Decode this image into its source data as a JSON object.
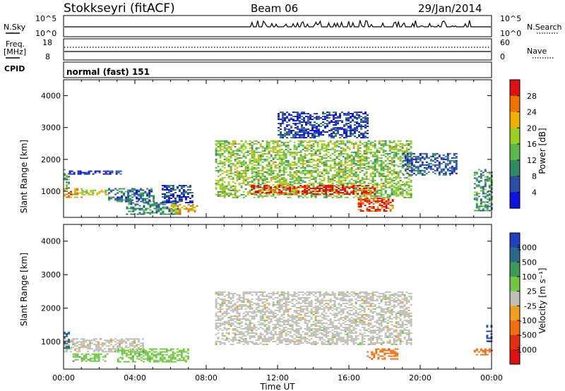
{
  "header": {
    "station": "Stokkseyri (fitACF)",
    "beam": "Beam 06",
    "date": "29/Jan/2014"
  },
  "noise_panel": {
    "left_label": "N.Sky",
    "right_label": "N.Search",
    "left_ticks": [
      "10^5",
      "10^0"
    ],
    "right_ticks": [
      "10^5",
      "10^0"
    ]
  },
  "freq_panel": {
    "left_label_1": "Freq.",
    "left_label_2": "[MHz]",
    "right_label": "Nave",
    "left_ticks": [
      "18",
      "8"
    ],
    "right_ticks": [
      "60",
      "0"
    ]
  },
  "cpid_panel": {
    "label": "CPID",
    "mode": "normal (fast) 151"
  },
  "chart_data": [
    {
      "type": "heatmap",
      "name": "power",
      "ylabel": "Slant Range [km]",
      "ylim": [
        180,
        4500
      ],
      "yticks": [
        "1000",
        "2000",
        "3000",
        "4000"
      ],
      "xlim": [
        0,
        24
      ],
      "colorbar": {
        "label": "Power [dB]",
        "ticks": [
          "4",
          "8",
          "12",
          "16",
          "20",
          "24",
          "28"
        ],
        "colors": [
          "#1010e0",
          "#2c4ca8",
          "#2e8a60",
          "#5ab848",
          "#9ad020",
          "#f0b000",
          "#f07000",
          "#e01010"
        ]
      },
      "regions": [
        {
          "x": [
            0.0,
            1.0
          ],
          "y": [
            800,
            1100
          ],
          "level": 0.75
        },
        {
          "x": [
            0.0,
            0.3
          ],
          "y": [
            1100,
            1700
          ],
          "level": 0.4
        },
        {
          "x": [
            0.3,
            3.2
          ],
          "y": [
            1550,
            1650
          ],
          "level": 0.1
        },
        {
          "x": [
            1.0,
            2.5
          ],
          "y": [
            900,
            1050
          ],
          "level": 0.55
        },
        {
          "x": [
            2.5,
            5.0
          ],
          "y": [
            700,
            1100
          ],
          "level": 0.25
        },
        {
          "x": [
            3.5,
            6.5
          ],
          "y": [
            300,
            700
          ],
          "level": 0.3
        },
        {
          "x": [
            6.0,
            7.5
          ],
          "y": [
            300,
            600
          ],
          "level": 0.7
        },
        {
          "x": [
            5.5,
            7.2
          ],
          "y": [
            650,
            1200
          ],
          "level": 0.15
        },
        {
          "x": [
            8.5,
            19.5
          ],
          "y": [
            800,
            2600
          ],
          "level": 0.5
        },
        {
          "x": [
            10.5,
            17.5
          ],
          "y": [
            900,
            1200
          ],
          "level": 0.95
        },
        {
          "x": [
            16.5,
            18.5
          ],
          "y": [
            400,
            800
          ],
          "level": 0.9
        },
        {
          "x": [
            19.0,
            22.0
          ],
          "y": [
            1500,
            2200
          ],
          "level": 0.2
        },
        {
          "x": [
            23.0,
            24.0
          ],
          "y": [
            400,
            1700
          ],
          "level": 0.35
        },
        {
          "x": [
            12.0,
            17.0
          ],
          "y": [
            2700,
            3500
          ],
          "level": 0.15
        }
      ]
    },
    {
      "type": "heatmap",
      "name": "velocity",
      "ylabel": "Slant Range [km]",
      "xlabel": "Time UT",
      "ylim": [
        180,
        4500
      ],
      "yticks": [
        "1000",
        "2000",
        "3000",
        "4000"
      ],
      "xlim": [
        0,
        24
      ],
      "xticks": [
        "00:00",
        "04:00",
        "08:00",
        "12:00",
        "16:00",
        "20:00",
        "00:00"
      ],
      "colorbar": {
        "label": "Velocity [m s⁻¹]",
        "ticks": [
          "1000",
          "500",
          "100",
          "25",
          "-25",
          "-100",
          "-500",
          "-1000"
        ],
        "colors": [
          "#2040c0",
          "#2c6a8c",
          "#3c9a5a",
          "#70c840",
          "#c0c0b8",
          "#f0a020",
          "#f07010",
          "#e03010",
          "#e01010"
        ]
      },
      "regions": [
        {
          "x": [
            0.0,
            4.5
          ],
          "y": [
            700,
            1100
          ],
          "v": 25
        },
        {
          "x": [
            3.0,
            7.0
          ],
          "y": [
            400,
            800
          ],
          "v": 100
        },
        {
          "x": [
            0.5,
            2.5
          ],
          "y": [
            400,
            650
          ],
          "v": 100
        },
        {
          "x": [
            8.5,
            19.5
          ],
          "y": [
            900,
            2500
          ],
          "v": 0
        },
        {
          "x": [
            17.0,
            18.7
          ],
          "y": [
            500,
            800
          ],
          "v": -500
        },
        {
          "x": [
            23.0,
            24.0
          ],
          "y": [
            600,
            800
          ],
          "v": -500
        },
        {
          "x": [
            0.0,
            0.3
          ],
          "y": [
            800,
            1300
          ],
          "v": 500
        },
        {
          "x": [
            23.7,
            24.0
          ],
          "y": [
            1000,
            1500
          ],
          "v": 800
        }
      ]
    }
  ]
}
